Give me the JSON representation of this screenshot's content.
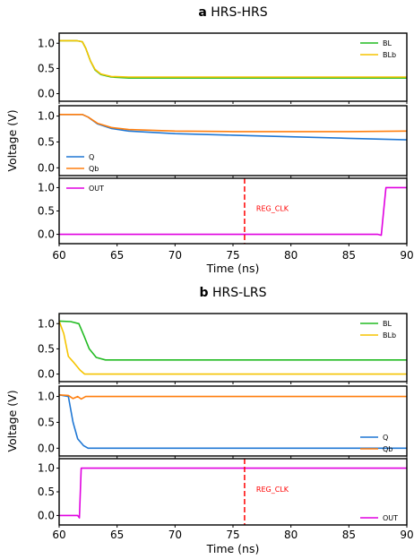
{
  "chart_data": [
    {
      "type": "line",
      "panel_letter": "a",
      "title": "HRS-HRS",
      "xlabel": "Time (ns)",
      "ylabel": "Voltage (V)",
      "xlim": [
        60,
        90
      ],
      "xticks": [
        60,
        65,
        70,
        75,
        80,
        85,
        90
      ],
      "annotation": {
        "text": "REG_CLK",
        "x": 76,
        "color": "#ff0000",
        "subplot": 2
      },
      "subplots": [
        {
          "ylim": [
            -0.15,
            1.2
          ],
          "yticks": [
            0.0,
            0.5,
            1.0
          ],
          "legend_position": "upper-right",
          "series": [
            {
              "name": "BL",
              "color": "#22bb22",
              "points": [
                [
                  60,
                  1.05
                ],
                [
                  61.5,
                  1.05
                ],
                [
                  62,
                  1.03
                ],
                [
                  62.3,
                  0.9
                ],
                [
                  62.7,
                  0.65
                ],
                [
                  63.1,
                  0.47
                ],
                [
                  63.6,
                  0.38
                ],
                [
                  64.5,
                  0.33
                ],
                [
                  66,
                  0.31
                ],
                [
                  90,
                  0.31
                ]
              ]
            },
            {
              "name": "BLb",
              "color": "#f5c400",
              "points": [
                [
                  60,
                  1.05
                ],
                [
                  61.5,
                  1.05
                ],
                [
                  62,
                  1.03
                ],
                [
                  62.3,
                  0.9
                ],
                [
                  62.7,
                  0.65
                ],
                [
                  63.1,
                  0.48
                ],
                [
                  63.6,
                  0.39
                ],
                [
                  64.5,
                  0.34
                ],
                [
                  66,
                  0.33
                ],
                [
                  90,
                  0.33
                ]
              ]
            }
          ]
        },
        {
          "ylim": [
            -0.15,
            1.2
          ],
          "yticks": [
            0.0,
            0.5,
            1.0
          ],
          "legend_position": "lower-left",
          "series": [
            {
              "name": "Q",
              "color": "#1f77d4",
              "points": [
                [
                  60,
                  1.03
                ],
                [
                  62,
                  1.03
                ],
                [
                  62.5,
                  0.98
                ],
                [
                  63.3,
                  0.85
                ],
                [
                  64.5,
                  0.76
                ],
                [
                  66,
                  0.71
                ],
                [
                  70,
                  0.66
                ],
                [
                  75,
                  0.63
                ],
                [
                  80,
                  0.6
                ],
                [
                  85,
                  0.57
                ],
                [
                  90,
                  0.54
                ]
              ]
            },
            {
              "name": "Qb",
              "color": "#ff7f0e",
              "points": [
                [
                  60,
                  1.03
                ],
                [
                  62,
                  1.03
                ],
                [
                  62.5,
                  0.98
                ],
                [
                  63.3,
                  0.86
                ],
                [
                  64.5,
                  0.78
                ],
                [
                  66,
                  0.74
                ],
                [
                  70,
                  0.71
                ],
                [
                  75,
                  0.7
                ],
                [
                  80,
                  0.7
                ],
                [
                  85,
                  0.7
                ],
                [
                  90,
                  0.71
                ]
              ]
            }
          ]
        },
        {
          "ylim": [
            -0.2,
            1.2
          ],
          "yticks": [
            0.0,
            0.5,
            1.0
          ],
          "legend_position": "upper-left",
          "series": [
            {
              "name": "OUT",
              "color": "#e000e0",
              "points": [
                [
                  60,
                  0
                ],
                [
                  87.5,
                  0
                ],
                [
                  87.8,
                  -0.02
                ],
                [
                  88,
                  0.5
                ],
                [
                  88.2,
                  1.0
                ],
                [
                  90,
                  1.0
                ]
              ]
            }
          ]
        }
      ]
    },
    {
      "type": "line",
      "panel_letter": "b",
      "title": "HRS-LRS",
      "xlabel": "Time (ns)",
      "ylabel": "Voltage (V)",
      "xlim": [
        60,
        90
      ],
      "xticks": [
        60,
        65,
        70,
        75,
        80,
        85,
        90
      ],
      "annotation": {
        "text": "REG_CLK",
        "x": 76,
        "color": "#ff0000",
        "subplot": 2
      },
      "subplots": [
        {
          "ylim": [
            -0.15,
            1.2
          ],
          "yticks": [
            0.0,
            0.5,
            1.0
          ],
          "legend_position": "upper-right",
          "series": [
            {
              "name": "BL",
              "color": "#22bb22",
              "points": [
                [
                  60,
                  1.05
                ],
                [
                  61,
                  1.04
                ],
                [
                  61.7,
                  1.0
                ],
                [
                  62.1,
                  0.78
                ],
                [
                  62.6,
                  0.5
                ],
                [
                  63.2,
                  0.33
                ],
                [
                  64,
                  0.28
                ],
                [
                  90,
                  0.28
                ]
              ]
            },
            {
              "name": "BLb",
              "color": "#f5c400",
              "points": [
                [
                  60,
                  1.05
                ],
                [
                  60.4,
                  0.8
                ],
                [
                  60.8,
                  0.35
                ],
                [
                  61.3,
                  0.22
                ],
                [
                  61.8,
                  0.08
                ],
                [
                  62.2,
                  0.0
                ],
                [
                  90,
                  0.0
                ]
              ]
            }
          ]
        },
        {
          "ylim": [
            -0.15,
            1.2
          ],
          "yticks": [
            0.0,
            0.5,
            1.0
          ],
          "legend_position": "lower-right",
          "series": [
            {
              "name": "Q",
              "color": "#1f77d4",
              "points": [
                [
                  60,
                  1.03
                ],
                [
                  60.8,
                  1.0
                ],
                [
                  61.2,
                  0.5
                ],
                [
                  61.6,
                  0.18
                ],
                [
                  62.1,
                  0.05
                ],
                [
                  62.5,
                  0.0
                ],
                [
                  90,
                  0.0
                ]
              ]
            },
            {
              "name": "Qb",
              "color": "#ff7f0e",
              "points": [
                [
                  60,
                  1.03
                ],
                [
                  60.8,
                  1.02
                ],
                [
                  61.2,
                  0.96
                ],
                [
                  61.6,
                  1.0
                ],
                [
                  61.9,
                  0.95
                ],
                [
                  62.3,
                  1.0
                ],
                [
                  90,
                  1.0
                ]
              ]
            }
          ]
        },
        {
          "ylim": [
            -0.2,
            1.2
          ],
          "yticks": [
            0.0,
            0.5,
            1.0
          ],
          "legend_position": "lower-right",
          "series": [
            {
              "name": "OUT",
              "color": "#e000e0",
              "points": [
                [
                  60,
                  0
                ],
                [
                  61.6,
                  0
                ],
                [
                  61.75,
                  -0.05
                ],
                [
                  61.9,
                  1.0
                ],
                [
                  90,
                  1.0
                ]
              ]
            }
          ]
        }
      ]
    }
  ]
}
